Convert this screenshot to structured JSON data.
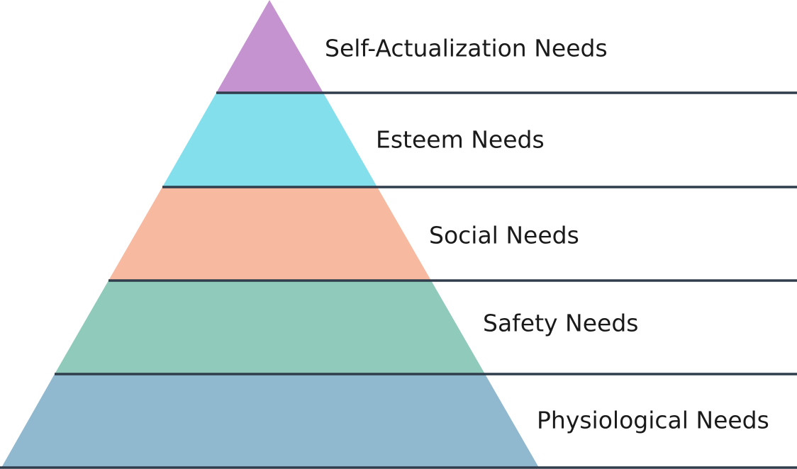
{
  "levels": [
    {
      "label": "Self-Actualization Needs"
    },
    {
      "label": "Esteem Needs"
    },
    {
      "label": "Social Needs"
    },
    {
      "label": "Safety Needs"
    },
    {
      "label": "Physiological Needs"
    }
  ]
}
